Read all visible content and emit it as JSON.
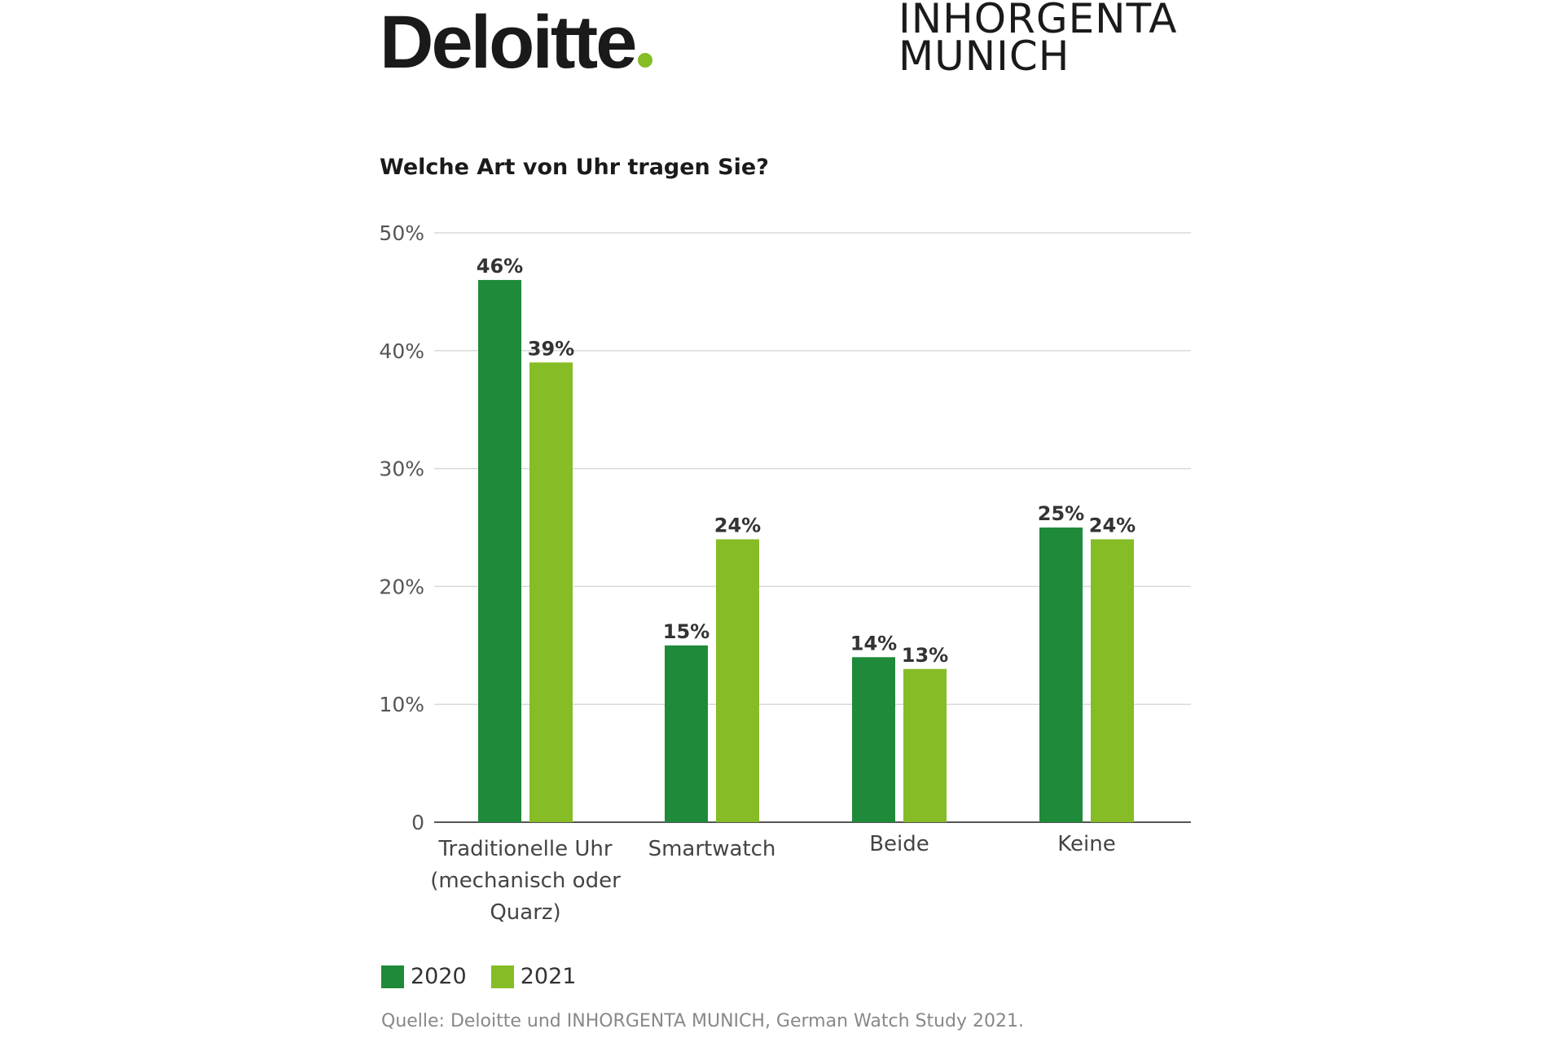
{
  "logos": {
    "left": "Deloitte",
    "right_line1": "INHORGENTA",
    "right_line2": "MUNICH",
    "accent": "#86bc25"
  },
  "chart_data": {
    "type": "bar",
    "title": "Welche Art von Uhr tragen Sie?",
    "categories": [
      [
        "Traditionelle Uhr",
        "(mechanisch oder",
        "Quarz)"
      ],
      [
        "Smartwatch"
      ],
      [
        "Beide"
      ],
      [
        "Keine"
      ]
    ],
    "series": [
      {
        "name": "2020",
        "color": "#1f8a3a",
        "values": [
          46,
          15,
          14,
          25
        ],
        "labels": [
          "46%",
          "15%",
          "14%",
          "25%"
        ]
      },
      {
        "name": "2021",
        "color": "#86bc25",
        "values": [
          39,
          24,
          13,
          24
        ],
        "labels": [
          "39%",
          "24%",
          "13%",
          "24%"
        ]
      }
    ],
    "ylim": [
      0,
      50
    ],
    "yticks": [
      0,
      10,
      20,
      30,
      40,
      50
    ],
    "ytick_labels": [
      "0",
      "10%",
      "20%",
      "30%",
      "40%",
      "50%"
    ],
    "grid": true,
    "legend_position": "bottom-left",
    "xlabel": "",
    "ylabel": ""
  },
  "source": "Quelle: Deloitte und INHORGENTA MUNICH, German Watch Study 2021."
}
